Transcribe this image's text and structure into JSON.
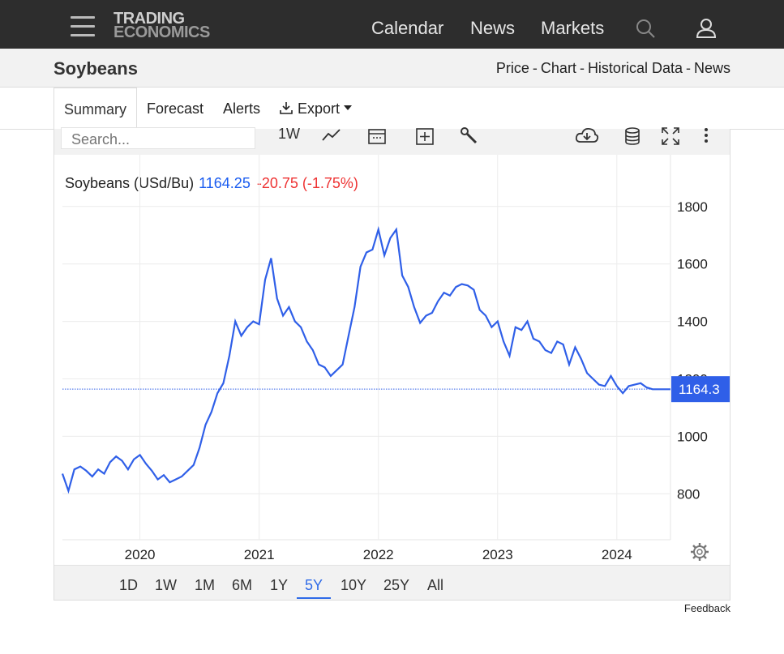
{
  "nav": {
    "logo_line1": "TRADING",
    "logo_line2": "ECONOMICS",
    "links": [
      "Calendar",
      "News",
      "Markets"
    ]
  },
  "page": {
    "title": "Soybeans",
    "breadcrumbs": [
      "Price",
      "Chart",
      "Historical Data",
      "News"
    ],
    "separator": "-"
  },
  "tabs": [
    "Summary",
    "Forecast",
    "Alerts",
    "Export"
  ],
  "active_tab": "Summary",
  "toolbar": {
    "search_placeholder": "Search...",
    "interval": "1W"
  },
  "quote": {
    "name": "Soybeans (USd/Bu)",
    "price": "1164.25",
    "change": "-20.75 (-1.75%)"
  },
  "last_price_label": "1164.3",
  "ranges": [
    "1D",
    "1W",
    "1M",
    "6M",
    "1Y",
    "5Y",
    "10Y",
    "25Y",
    "All"
  ],
  "selected_range": "5Y",
  "feedback": "Feedback",
  "colors": {
    "line": "#2f5fe8",
    "change_negative": "#e33333",
    "nav_bg": "#2d2d2d",
    "accent": "#1a5cf0"
  },
  "chart_data": {
    "type": "line",
    "ylim": [
      640,
      1980
    ],
    "xlim": [
      2019.35,
      2024.45
    ],
    "yticks": [
      800,
      1000,
      1200,
      1400,
      1600,
      1800
    ],
    "xticks": [
      2020,
      2021,
      2022,
      2023,
      2024
    ],
    "grid": true,
    "last_value": 1164.25,
    "series": [
      {
        "name": "Soybeans",
        "x": [
          2019.35,
          2019.4,
          2019.45,
          2019.5,
          2019.55,
          2019.6,
          2019.65,
          2019.7,
          2019.75,
          2019.8,
          2019.85,
          2019.9,
          2019.95,
          2020.0,
          2020.05,
          2020.1,
          2020.15,
          2020.2,
          2020.25,
          2020.3,
          2020.35,
          2020.4,
          2020.45,
          2020.5,
          2020.55,
          2020.6,
          2020.65,
          2020.7,
          2020.75,
          2020.8,
          2020.85,
          2020.9,
          2020.95,
          2021.0,
          2021.05,
          2021.1,
          2021.15,
          2021.2,
          2021.25,
          2021.3,
          2021.35,
          2021.4,
          2021.45,
          2021.5,
          2021.55,
          2021.6,
          2021.65,
          2021.7,
          2021.75,
          2021.8,
          2021.85,
          2021.9,
          2021.95,
          2022.0,
          2022.05,
          2022.1,
          2022.15,
          2022.2,
          2022.25,
          2022.3,
          2022.35,
          2022.4,
          2022.45,
          2022.5,
          2022.55,
          2022.6,
          2022.65,
          2022.7,
          2022.75,
          2022.8,
          2022.85,
          2022.9,
          2022.95,
          2023.0,
          2023.05,
          2023.1,
          2023.15,
          2023.2,
          2023.25,
          2023.3,
          2023.35,
          2023.4,
          2023.45,
          2023.5,
          2023.55,
          2023.6,
          2023.65,
          2023.7,
          2023.75,
          2023.8,
          2023.85,
          2023.9,
          2023.95,
          2024.0,
          2024.05,
          2024.1,
          2024.15,
          2024.2,
          2024.25,
          2024.3,
          2024.35,
          2024.4,
          2024.45
        ],
        "values": [
          870,
          810,
          885,
          895,
          880,
          860,
          885,
          870,
          910,
          930,
          915,
          885,
          920,
          935,
          905,
          880,
          850,
          865,
          840,
          850,
          860,
          880,
          900,
          960,
          1040,
          1085,
          1150,
          1185,
          1280,
          1400,
          1350,
          1380,
          1400,
          1390,
          1545,
          1620,
          1480,
          1420,
          1450,
          1400,
          1380,
          1330,
          1300,
          1250,
          1240,
          1210,
          1230,
          1250,
          1350,
          1450,
          1590,
          1640,
          1650,
          1720,
          1630,
          1690,
          1720,
          1560,
          1520,
          1450,
          1395,
          1420,
          1430,
          1470,
          1500,
          1490,
          1520,
          1530,
          1525,
          1510,
          1440,
          1420,
          1380,
          1400,
          1330,
          1280,
          1380,
          1370,
          1400,
          1340,
          1330,
          1300,
          1290,
          1330,
          1320,
          1250,
          1310,
          1270,
          1220,
          1200,
          1180,
          1175,
          1210,
          1175,
          1150,
          1175,
          1180,
          1185,
          1170,
          1164,
          1164,
          1164,
          1164
        ]
      }
    ]
  }
}
